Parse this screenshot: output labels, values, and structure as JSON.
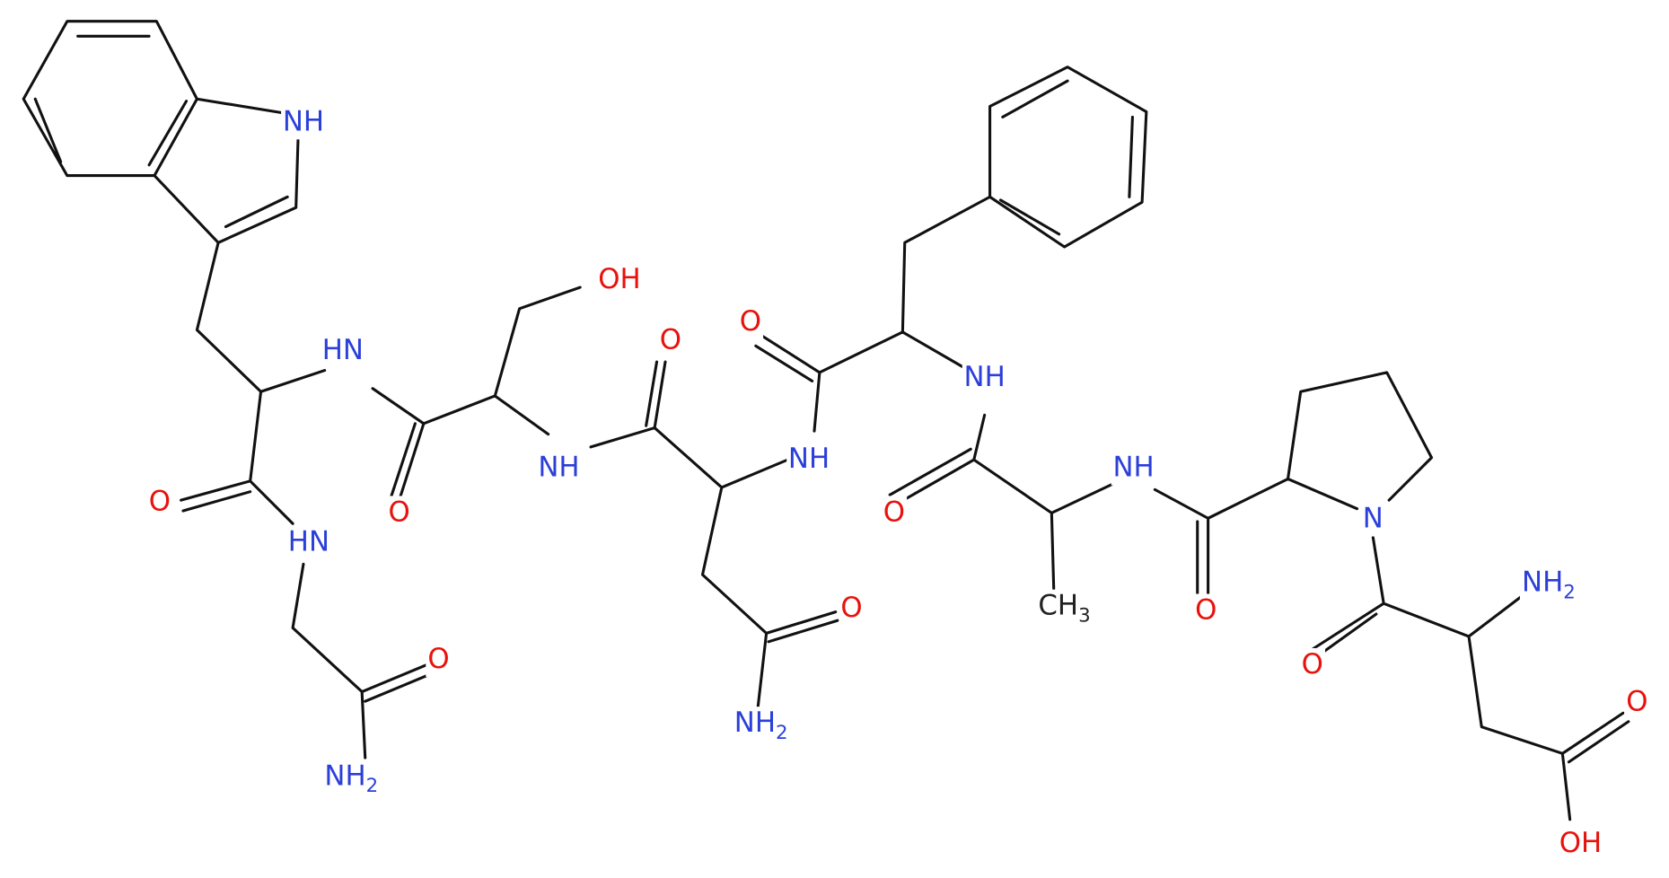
{
  "atoms": [
    {
      "text": "NH",
      "color": "#2b3fd9"
    },
    {
      "text": "OH",
      "color": "#e8120c"
    },
    {
      "text": "HN",
      "color": "#2b3fd9"
    },
    {
      "text": "O",
      "color": "#e8120c"
    },
    {
      "text": "O",
      "color": "#e8120c"
    },
    {
      "text": "NH",
      "color": "#2b3fd9"
    },
    {
      "text": "NH",
      "color": "#2b3fd9"
    },
    {
      "text": "NH",
      "color": "#2b3fd9"
    },
    {
      "text": "O",
      "color": "#e8120c"
    },
    {
      "text": "O",
      "color": "#e8120c"
    },
    {
      "text": "NH",
      "color": "#2b3fd9"
    },
    {
      "text": "O",
      "color": "#e8120c"
    },
    {
      "text": "HN",
      "color": "#2b3fd9"
    },
    {
      "text": "N",
      "color": "#2b3fd9"
    },
    {
      "text": "NH",
      "sub": "2",
      "color": "#2b3fd9"
    },
    {
      "text": "O",
      "color": "#e8120c"
    },
    {
      "text": "CH",
      "sub": "3",
      "color": "#222222"
    },
    {
      "text": "O",
      "color": "#e8120c"
    },
    {
      "text": "O",
      "color": "#e8120c"
    },
    {
      "text": "O",
      "color": "#e8120c"
    },
    {
      "text": "O",
      "color": "#e8120c"
    },
    {
      "text": "NH",
      "sub": "2",
      "color": "#2b3fd9"
    },
    {
      "text": "NH",
      "sub": "2",
      "color": "#2b3fd9"
    },
    {
      "text": "OH",
      "color": "#e8120c"
    }
  ]
}
